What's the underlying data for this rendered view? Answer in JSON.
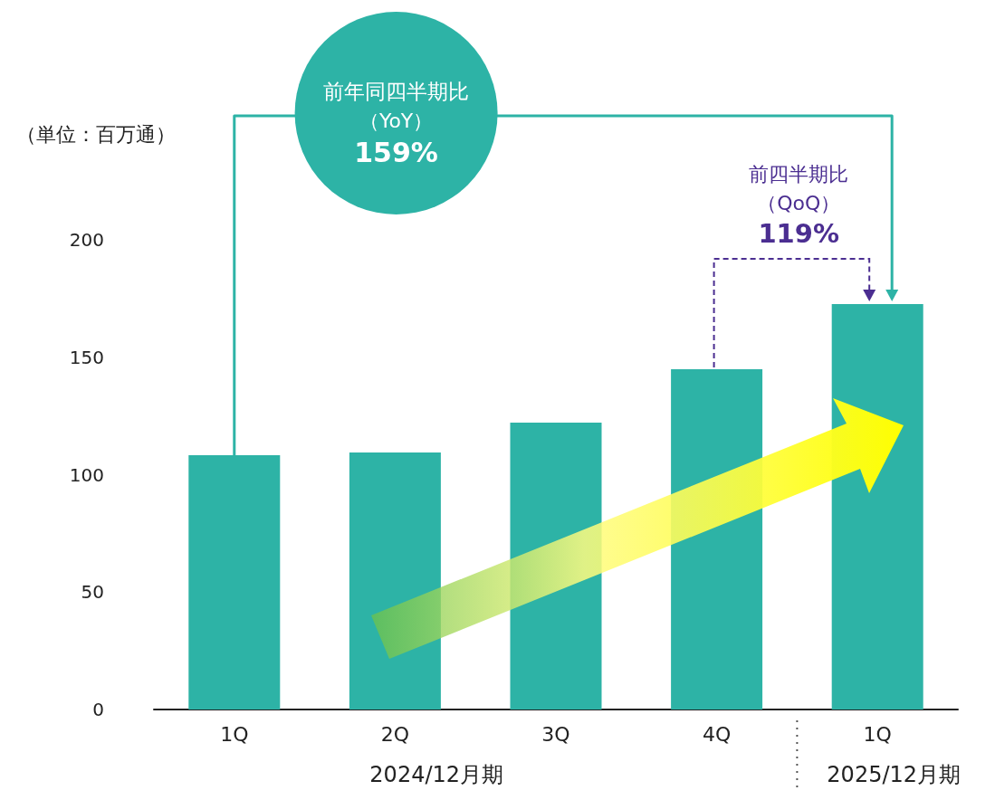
{
  "chart_data": {
    "type": "bar",
    "ylabel": "（単位：百万通）",
    "categories": [
      "1Q",
      "2Q",
      "3Q",
      "4Q",
      "1Q"
    ],
    "values": [
      108.3,
      109.4,
      122.2,
      144.9,
      172.6
    ],
    "color": "#2db3a6",
    "ylim": [
      0,
      200
    ],
    "yticks": [
      0,
      50,
      100,
      150,
      200
    ],
    "grid": false,
    "annotations": [
      "前年同四半期比",
      "（YoY）",
      "159%",
      "前四半期比",
      "（QoQ）",
      "119%",
      "2024/12月期",
      "2025/12月期"
    ]
  }
}
